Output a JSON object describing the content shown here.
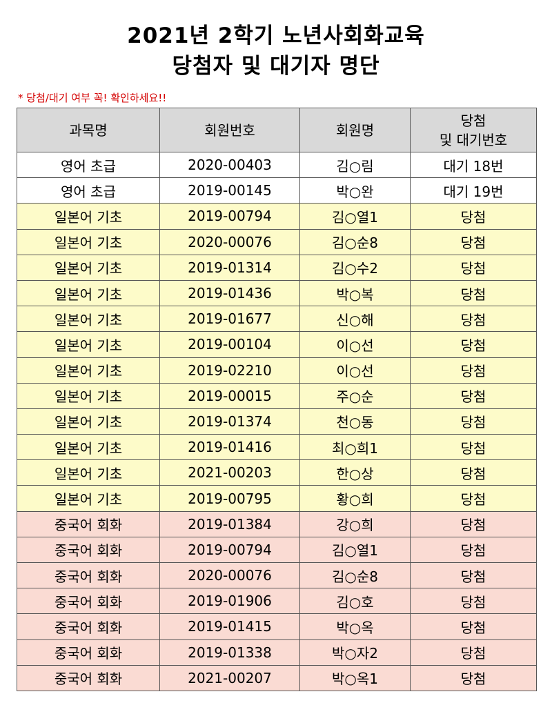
{
  "title": {
    "line1": "2021년 2학기 노년사회화교육",
    "line2": "당첨자 및 대기자 명단"
  },
  "notice": "* 당첨/대기 여부 꼭! 확인하세요!!",
  "table": {
    "headers": [
      "과목명",
      "회원번호",
      "회원명",
      "당첨\n및 대기번호"
    ],
    "rows": [
      {
        "course": "영어 초급",
        "member_no": "2020-00403",
        "name": "김○림",
        "status": "대기 18번",
        "tone": "white"
      },
      {
        "course": "영어 초급",
        "member_no": "2019-00145",
        "name": "박○완",
        "status": "대기 19번",
        "tone": "white"
      },
      {
        "course": "일본어 기초",
        "member_no": "2019-00794",
        "name": "김○열1",
        "status": "당첨",
        "tone": "yellow"
      },
      {
        "course": "일본어 기초",
        "member_no": "2020-00076",
        "name": "김○순8",
        "status": "당첨",
        "tone": "yellow"
      },
      {
        "course": "일본어 기초",
        "member_no": "2019-01314",
        "name": "김○수2",
        "status": "당첨",
        "tone": "yellow"
      },
      {
        "course": "일본어 기초",
        "member_no": "2019-01436",
        "name": "박○복",
        "status": "당첨",
        "tone": "yellow"
      },
      {
        "course": "일본어 기초",
        "member_no": "2019-01677",
        "name": "신○해",
        "status": "당첨",
        "tone": "yellow"
      },
      {
        "course": "일본어 기초",
        "member_no": "2019-00104",
        "name": "이○선",
        "status": "당첨",
        "tone": "yellow"
      },
      {
        "course": "일본어 기초",
        "member_no": "2019-02210",
        "name": "이○선",
        "status": "당첨",
        "tone": "yellow"
      },
      {
        "course": "일본어 기초",
        "member_no": "2019-00015",
        "name": "주○순",
        "status": "당첨",
        "tone": "yellow"
      },
      {
        "course": "일본어 기초",
        "member_no": "2019-01374",
        "name": "천○동",
        "status": "당첨",
        "tone": "yellow"
      },
      {
        "course": "일본어 기초",
        "member_no": "2019-01416",
        "name": "최○희1",
        "status": "당첨",
        "tone": "yellow"
      },
      {
        "course": "일본어 기초",
        "member_no": "2021-00203",
        "name": "한○상",
        "status": "당첨",
        "tone": "yellow"
      },
      {
        "course": "일본어 기초",
        "member_no": "2019-00795",
        "name": "황○희",
        "status": "당첨",
        "tone": "yellow"
      },
      {
        "course": "중국어 회화",
        "member_no": "2019-01384",
        "name": "강○희",
        "status": "당첨",
        "tone": "pink"
      },
      {
        "course": "중국어 회화",
        "member_no": "2019-00794",
        "name": "김○열1",
        "status": "당첨",
        "tone": "pink"
      },
      {
        "course": "중국어 회화",
        "member_no": "2020-00076",
        "name": "김○순8",
        "status": "당첨",
        "tone": "pink"
      },
      {
        "course": "중국어 회화",
        "member_no": "2019-01906",
        "name": "김○호",
        "status": "당첨",
        "tone": "pink"
      },
      {
        "course": "중국어 회화",
        "member_no": "2019-01415",
        "name": "박○옥",
        "status": "당첨",
        "tone": "pink"
      },
      {
        "course": "중국어 회화",
        "member_no": "2019-01338",
        "name": "박○자2",
        "status": "당첨",
        "tone": "pink"
      },
      {
        "course": "중국어 회화",
        "member_no": "2021-00207",
        "name": "박○옥1",
        "status": "당첨",
        "tone": "pink"
      }
    ]
  }
}
